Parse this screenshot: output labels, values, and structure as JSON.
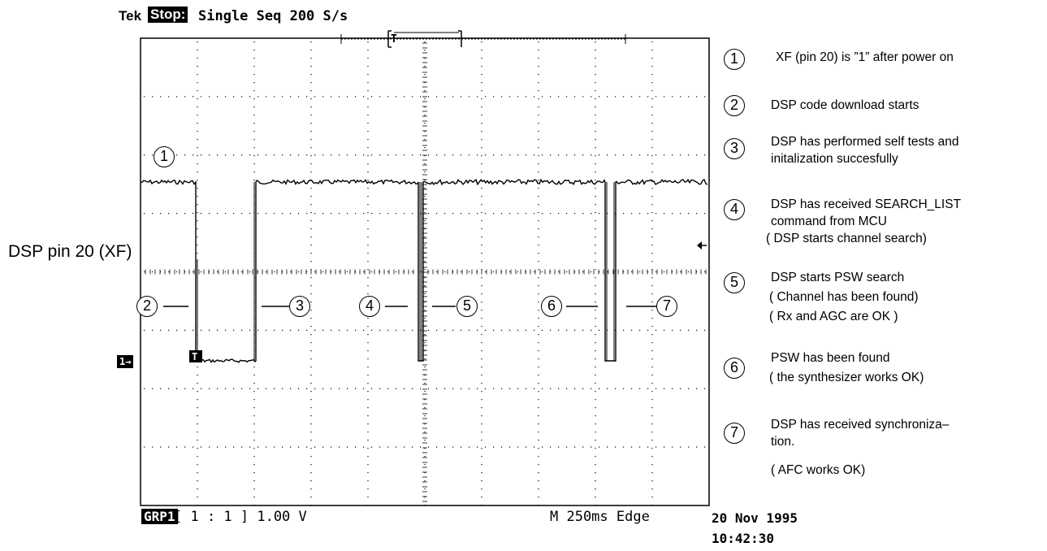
{
  "header": {
    "brand": "Tek",
    "status": "Stop:",
    "acquisition": "Single Seq  200 S/s"
  },
  "channel_label": "DSP pin 20 (XF)",
  "channel_marker": "1→",
  "trigger_marker": "T",
  "footer": {
    "group": "GRP1",
    "scale": "[ 1 : 1 ]  1.00 V",
    "timebase": "M 250ms  Edge",
    "date": "20 Nov 1995",
    "time": "10:42:30"
  },
  "plot_markers": [
    {
      "num": "1"
    },
    {
      "num": "2"
    },
    {
      "num": "3"
    },
    {
      "num": "4"
    },
    {
      "num": "5"
    },
    {
      "num": "6"
    },
    {
      "num": "7"
    }
  ],
  "legend": [
    {
      "num": "1",
      "lines": [
        "XF (pin 20) is ”1” after power on"
      ]
    },
    {
      "num": "2",
      "lines": [
        "DSP code download starts"
      ]
    },
    {
      "num": "3",
      "lines": [
        "DSP has performed self tests and",
        "initalization succesfully"
      ]
    },
    {
      "num": "4",
      "lines": [
        "DSP has received  SEARCH_LIST",
        "command from MCU",
        "( DSP starts channel search)"
      ]
    },
    {
      "num": "5",
      "lines": [
        "DSP starts PSW search",
        "( Channel has been found)",
        "( Rx and AGC are OK )"
      ]
    },
    {
      "num": "6",
      "lines": [
        "PSW has been found",
        "( the synthesizer works OK)"
      ]
    },
    {
      "num": "7",
      "lines": [
        "DSP has received synchroniza–",
        "tion.",
        "( AFC works OK)"
      ]
    }
  ]
}
